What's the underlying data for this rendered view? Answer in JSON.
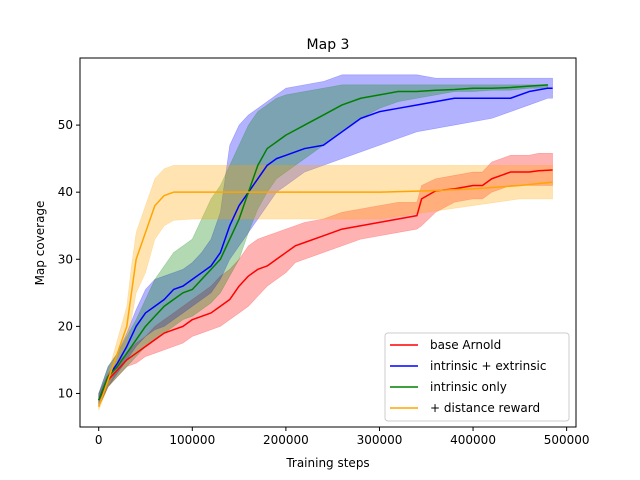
{
  "chart_data": {
    "type": "line",
    "title": "Map 3",
    "xlabel": "Training steps",
    "ylabel": "Map coverage",
    "xlim": [
      -20000,
      510000
    ],
    "ylim": [
      5,
      60
    ],
    "xticks": [
      0,
      100000,
      200000,
      300000,
      400000,
      500000
    ],
    "xtick_labels": [
      "0",
      "100000",
      "200000",
      "300000",
      "400000",
      "500000"
    ],
    "yticks": [
      10,
      20,
      30,
      40,
      50
    ],
    "ytick_labels": [
      "10",
      "20",
      "30",
      "40",
      "50"
    ],
    "grid": false,
    "legend_position": "lower right",
    "series": [
      {
        "name": "base Arnold",
        "color": "#ff0000",
        "x": [
          0,
          10000,
          20000,
          30000,
          40000,
          50000,
          60000,
          70000,
          80000,
          90000,
          100000,
          110000,
          120000,
          130000,
          140000,
          150000,
          160000,
          170000,
          180000,
          190000,
          200000,
          210000,
          220000,
          240000,
          260000,
          280000,
          300000,
          320000,
          340000,
          345000,
          360000,
          380000,
          400000,
          410000,
          420000,
          430000,
          440000,
          460000,
          470000,
          485000
        ],
        "y": [
          9,
          12,
          13.5,
          15,
          16,
          17,
          18,
          19,
          19.5,
          20,
          21,
          21.5,
          22,
          23,
          24,
          26,
          27.5,
          28.5,
          29,
          30,
          31,
          32,
          32.5,
          33.5,
          34.5,
          35,
          35.5,
          36,
          36.5,
          39,
          40.2,
          40.5,
          41,
          41,
          42,
          42.5,
          43,
          43,
          43.2,
          43.3
        ],
        "lower": [
          8,
          11,
          12.5,
          14,
          14.5,
          15.5,
          16,
          16.5,
          17,
          17.5,
          18.5,
          19,
          19.5,
          20,
          21,
          22,
          23,
          24.5,
          26,
          27,
          28,
          29.5,
          30,
          31,
          32,
          33,
          33.5,
          34,
          34.5,
          35,
          37,
          38.5,
          39,
          39,
          40,
          40.5,
          41,
          41,
          41,
          41
        ],
        "upper": [
          10,
          13,
          14.5,
          16,
          17.5,
          18.5,
          20,
          21,
          22,
          23,
          24,
          25,
          26,
          27.5,
          28.5,
          30,
          32,
          33,
          33.5,
          34,
          34.5,
          35,
          35.5,
          36,
          37,
          37.5,
          38,
          38.5,
          38.5,
          41,
          42,
          42.5,
          43,
          43,
          44.5,
          45,
          45.5,
          45.5,
          45.8,
          45.8
        ]
      },
      {
        "name": "intrinsic + extrinsic",
        "color": "#0000ff",
        "x": [
          0,
          10000,
          20000,
          30000,
          40000,
          50000,
          60000,
          70000,
          80000,
          90000,
          100000,
          110000,
          120000,
          130000,
          140000,
          150000,
          160000,
          170000,
          180000,
          190000,
          200000,
          220000,
          240000,
          260000,
          280000,
          300000,
          320000,
          340000,
          360000,
          380000,
          400000,
          420000,
          440000,
          460000,
          480000,
          485000
        ],
        "y": [
          9,
          12.5,
          14.5,
          17,
          20,
          22,
          23,
          24,
          25.5,
          26,
          27,
          28,
          29,
          31,
          35,
          38,
          40,
          42,
          44,
          45,
          45.5,
          46.5,
          47,
          49,
          51,
          52,
          52.5,
          53,
          53.5,
          54,
          54,
          54,
          54,
          55,
          55.5,
          55.5
        ],
        "lower": [
          8,
          11,
          13,
          15,
          17,
          18.5,
          19.5,
          20,
          21,
          22,
          23,
          24,
          25,
          27,
          30,
          32,
          34,
          36,
          38,
          40,
          41,
          43,
          44,
          45,
          46,
          47,
          48,
          49,
          49.5,
          50,
          50.5,
          51,
          52,
          53,
          54,
          54
        ],
        "upper": [
          10,
          14,
          16,
          19,
          22.5,
          25.5,
          27,
          27.5,
          28,
          28.5,
          29.5,
          31,
          33,
          37,
          47,
          50,
          51.5,
          52.5,
          53.5,
          54.5,
          55.5,
          56,
          56.5,
          57.5,
          57.5,
          57.5,
          57.5,
          57.5,
          57,
          57,
          57,
          57,
          57,
          57,
          57,
          57
        ]
      },
      {
        "name": "intrinsic only",
        "color": "#008000",
        "x": [
          0,
          10000,
          20000,
          30000,
          40000,
          50000,
          60000,
          70000,
          80000,
          90000,
          100000,
          110000,
          120000,
          130000,
          140000,
          150000,
          160000,
          170000,
          180000,
          190000,
          200000,
          220000,
          240000,
          260000,
          280000,
          300000,
          320000,
          340000,
          360000,
          380000,
          400000,
          420000,
          440000,
          460000,
          480000
        ],
        "y": [
          9,
          12.5,
          14,
          16,
          18,
          20,
          21.5,
          23,
          24,
          25,
          25.5,
          27,
          28.5,
          30,
          33,
          36,
          40,
          44,
          46.5,
          47.5,
          48.5,
          50,
          51.5,
          53,
          54,
          54.5,
          55,
          55,
          55.2,
          55.3,
          55.5,
          55.5,
          55.6,
          55.8,
          56
        ],
        "lower": [
          8,
          11,
          12.5,
          14,
          15.5,
          17,
          18,
          19,
          20,
          21,
          21.5,
          22.5,
          23.5,
          25,
          27.5,
          30,
          34,
          37.5,
          40,
          42,
          43,
          45,
          47,
          49,
          51,
          52.5,
          53.5,
          54,
          54.5,
          55,
          55,
          55.2,
          55.2,
          55.5,
          55.5
        ],
        "upper": [
          10,
          14,
          16,
          18.5,
          21,
          24,
          27,
          29,
          31,
          32,
          33,
          36,
          39,
          41,
          44,
          47,
          50,
          52,
          53,
          54,
          54.5,
          55,
          55.5,
          56,
          56,
          56,
          56,
          56,
          56,
          56,
          56,
          56,
          56,
          56,
          56
        ]
      },
      {
        "name": "+ distance reward",
        "color": "#ffa500",
        "x": [
          0,
          10000,
          20000,
          30000,
          35000,
          40000,
          50000,
          55000,
          60000,
          70000,
          80000,
          100000,
          150000,
          200000,
          250000,
          300000,
          350000,
          400000,
          450000,
          485000
        ],
        "y": [
          8,
          12,
          16,
          20,
          25,
          30,
          34,
          36,
          38,
          39.5,
          40,
          40,
          40,
          40,
          40,
          40,
          40.2,
          40.5,
          41,
          41.5
        ],
        "lower": [
          7.5,
          11,
          14,
          17.5,
          21,
          25,
          28,
          30.5,
          33,
          35,
          35.8,
          36,
          36,
          36,
          36,
          36,
          37,
          38,
          39,
          39
        ],
        "upper": [
          8.5,
          13,
          18,
          23,
          29,
          34,
          38,
          40,
          42,
          43.5,
          44,
          44,
          44,
          44,
          44,
          44,
          44,
          44,
          44,
          44
        ]
      }
    ]
  }
}
